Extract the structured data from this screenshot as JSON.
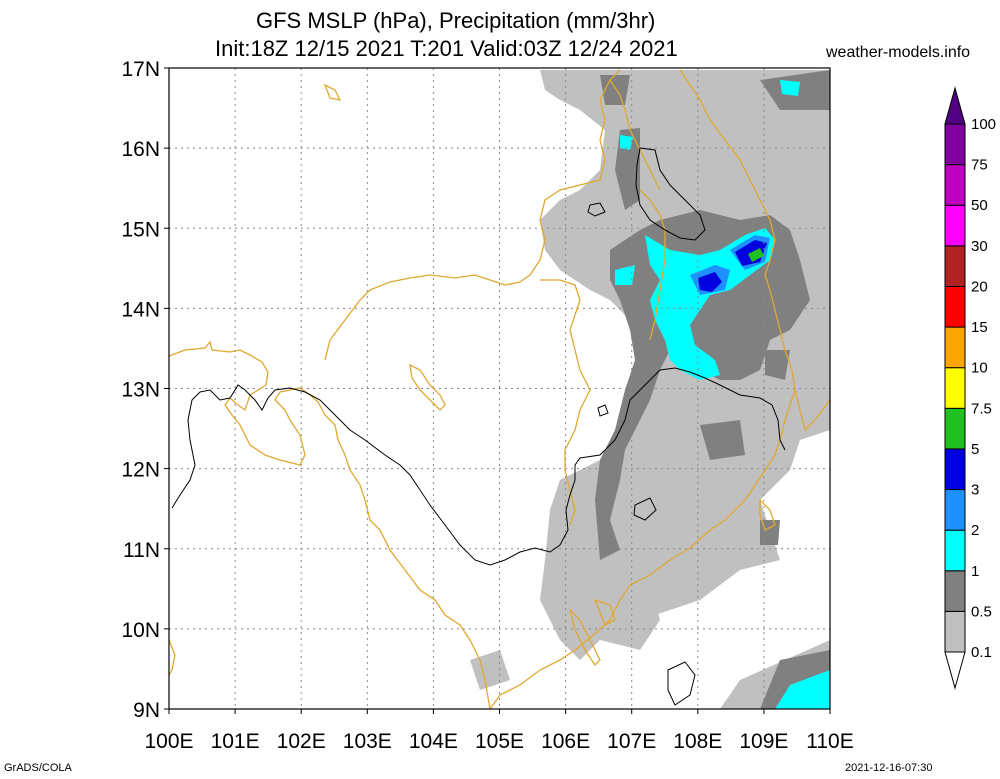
{
  "title_line1": "GFS MSLP (hPa), Precipitation (mm/3hr)",
  "title_line2": "Init:18Z 12/15 2021 T:201 Valid:03Z 12/24 2021",
  "site": "weather-models.info",
  "footer_left": "GrADS/COLA",
  "footer_right": "2021-12-16-07:30",
  "map": {
    "lon_range": [
      100,
      110
    ],
    "lat_range": [
      9,
      17
    ],
    "lon_labels": [
      "100E",
      "101E",
      "102E",
      "103E",
      "104E",
      "105E",
      "106E",
      "107E",
      "108E",
      "109E",
      "110E"
    ],
    "lat_labels": [
      "9N",
      "10N",
      "11N",
      "12N",
      "13N",
      "14N",
      "15N",
      "16N",
      "17N"
    ],
    "grid": "dotted",
    "coast_color": "#e0a830",
    "isobar_color": "#000000"
  },
  "colorbar": {
    "labels": [
      "0.1",
      "0.5",
      "1",
      "2",
      "3",
      "5",
      "7.5",
      "10",
      "15",
      "20",
      "30",
      "50",
      "75",
      "100"
    ],
    "colors": [
      "#ffffff",
      "#c0c0c0",
      "#808080",
      "#00ffff",
      "#1e90ff",
      "#0000e0",
      "#20c020",
      "#ffff00",
      "#ffa500",
      "#ff0000",
      "#b22222",
      "#ff00ff",
      "#c000c0",
      "#8000a0",
      "#500080"
    ]
  }
}
